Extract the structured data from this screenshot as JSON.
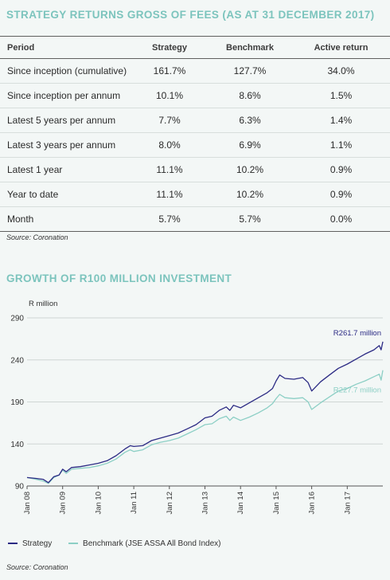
{
  "returns_section": {
    "title": "STRATEGY RETURNS GROSS OF FEES (AS AT 31 DECEMBER 2017)",
    "headers": [
      "Period",
      "Strategy",
      "Benchmark",
      "Active return"
    ],
    "rows": [
      [
        "Since inception (cumulative)",
        "161.7%",
        "127.7%",
        "34.0%"
      ],
      [
        "Since inception per annum",
        "10.1%",
        "8.6%",
        "1.5%"
      ],
      [
        "Latest 5 years per annum",
        "7.7%",
        "6.3%",
        "1.4%"
      ],
      [
        "Latest 3 years per annum",
        "8.0%",
        "6.9%",
        "1.1%"
      ],
      [
        "Latest 1 year",
        "11.1%",
        "10.2%",
        "0.9%"
      ],
      [
        "Year to date",
        "11.1%",
        "10.2%",
        "0.9%"
      ],
      [
        "Month",
        "5.7%",
        "5.7%",
        "0.0%"
      ]
    ],
    "source": "Source: Coronation"
  },
  "growth_section": {
    "title": "GROWTH OF R100 MILLION INVESTMENT",
    "source": "Source: Coronation"
  },
  "colors": {
    "accent": "#7cc4bd",
    "strategy": "#2b2a84",
    "benchmark": "#8ccfc5"
  },
  "chart_data": {
    "type": "line",
    "ylabel": "R million",
    "ylim": [
      90,
      290
    ],
    "yticks": [
      90,
      140,
      190,
      240,
      290
    ],
    "xlim": [
      2008.0,
      2018.0
    ],
    "xtick_labels": [
      "Jan 08",
      "Jan 09",
      "Jan 10",
      "Jan 11",
      "Jan 12",
      "Jan 13",
      "Jan 14",
      "Jan 15",
      "Jan 16",
      "Jan 17"
    ],
    "grid": "horizontal",
    "legend_position": "bottom",
    "series": [
      {
        "name": "Strategy",
        "color": "#2b2a84",
        "end_label": "R261.7 million",
        "points": [
          [
            2008.0,
            100
          ],
          [
            2008.25,
            99
          ],
          [
            2008.45,
            98
          ],
          [
            2008.6,
            94
          ],
          [
            2008.75,
            101
          ],
          [
            2008.9,
            103
          ],
          [
            2009.0,
            110
          ],
          [
            2009.1,
            107
          ],
          [
            2009.25,
            112
          ],
          [
            2009.5,
            113
          ],
          [
            2009.75,
            115
          ],
          [
            2010.0,
            117
          ],
          [
            2010.25,
            120
          ],
          [
            2010.5,
            126
          ],
          [
            2010.75,
            134
          ],
          [
            2010.9,
            138
          ],
          [
            2011.0,
            137
          ],
          [
            2011.25,
            138
          ],
          [
            2011.5,
            144
          ],
          [
            2011.75,
            147
          ],
          [
            2012.0,
            150
          ],
          [
            2012.25,
            153
          ],
          [
            2012.5,
            158
          ],
          [
            2012.75,
            163
          ],
          [
            2013.0,
            171
          ],
          [
            2013.2,
            173
          ],
          [
            2013.4,
            180
          ],
          [
            2013.6,
            184
          ],
          [
            2013.7,
            180
          ],
          [
            2013.8,
            186
          ],
          [
            2014.0,
            183
          ],
          [
            2014.25,
            189
          ],
          [
            2014.5,
            195
          ],
          [
            2014.75,
            201
          ],
          [
            2014.9,
            206
          ],
          [
            2015.0,
            215
          ],
          [
            2015.1,
            222
          ],
          [
            2015.25,
            218
          ],
          [
            2015.5,
            217
          ],
          [
            2015.75,
            219
          ],
          [
            2015.9,
            213
          ],
          [
            2016.0,
            203
          ],
          [
            2016.25,
            214
          ],
          [
            2016.5,
            222
          ],
          [
            2016.75,
            230
          ],
          [
            2017.0,
            235
          ],
          [
            2017.25,
            241
          ],
          [
            2017.5,
            247
          ],
          [
            2017.75,
            252
          ],
          [
            2017.9,
            257
          ],
          [
            2017.95,
            252
          ],
          [
            2018.0,
            261.7
          ]
        ]
      },
      {
        "name": "Benchmark (JSE ASSA All Bond Index)",
        "color": "#8ccfc5",
        "end_label": "R227.7 million",
        "points": [
          [
            2008.0,
            100
          ],
          [
            2008.25,
            98
          ],
          [
            2008.45,
            96
          ],
          [
            2008.6,
            93
          ],
          [
            2008.75,
            100
          ],
          [
            2008.9,
            103
          ],
          [
            2009.0,
            109
          ],
          [
            2009.1,
            105
          ],
          [
            2009.25,
            110
          ],
          [
            2009.5,
            111
          ],
          [
            2009.75,
            112
          ],
          [
            2010.0,
            114
          ],
          [
            2010.25,
            117
          ],
          [
            2010.5,
            122
          ],
          [
            2010.75,
            130
          ],
          [
            2010.9,
            133
          ],
          [
            2011.0,
            131
          ],
          [
            2011.25,
            133
          ],
          [
            2011.5,
            139
          ],
          [
            2011.75,
            142
          ],
          [
            2012.0,
            144
          ],
          [
            2012.25,
            147
          ],
          [
            2012.5,
            152
          ],
          [
            2012.75,
            157
          ],
          [
            2013.0,
            163
          ],
          [
            2013.2,
            164
          ],
          [
            2013.4,
            170
          ],
          [
            2013.6,
            173
          ],
          [
            2013.7,
            168
          ],
          [
            2013.8,
            172
          ],
          [
            2014.0,
            168
          ],
          [
            2014.25,
            172
          ],
          [
            2014.5,
            177
          ],
          [
            2014.75,
            183
          ],
          [
            2014.9,
            188
          ],
          [
            2015.0,
            194
          ],
          [
            2015.1,
            199
          ],
          [
            2015.25,
            195
          ],
          [
            2015.5,
            194
          ],
          [
            2015.75,
            195
          ],
          [
            2015.9,
            190
          ],
          [
            2016.0,
            181
          ],
          [
            2016.25,
            189
          ],
          [
            2016.5,
            196
          ],
          [
            2016.75,
            203
          ],
          [
            2017.0,
            206
          ],
          [
            2017.25,
            211
          ],
          [
            2017.5,
            215
          ],
          [
            2017.75,
            220
          ],
          [
            2017.9,
            223
          ],
          [
            2017.95,
            216
          ],
          [
            2018.0,
            227.7
          ]
        ]
      }
    ]
  }
}
